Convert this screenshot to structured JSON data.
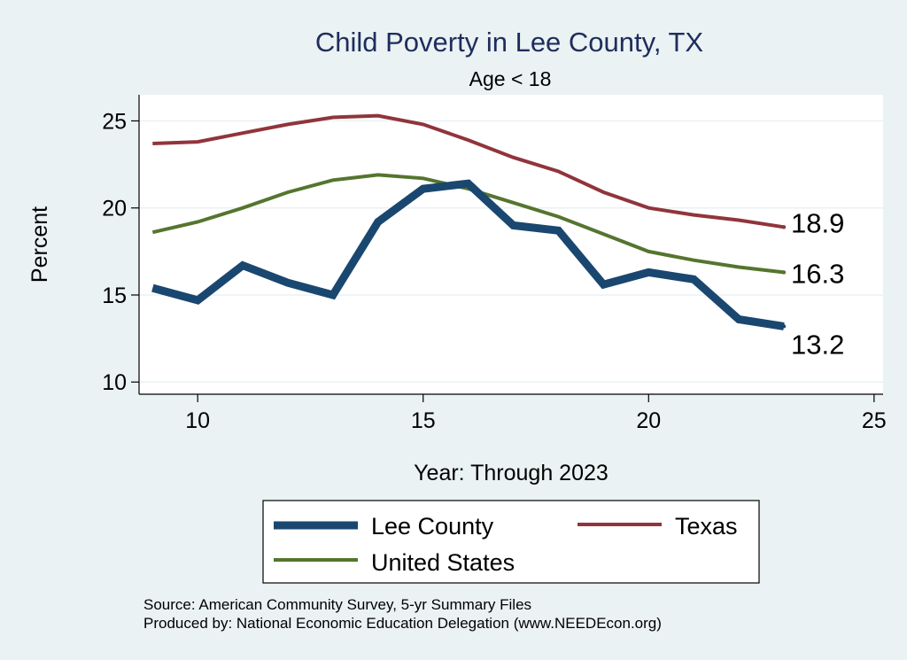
{
  "chart_data": {
    "type": "line",
    "title": "Child Poverty in Lee County, TX",
    "subtitle": "Age < 18",
    "xlabel": "Year: Through 2023",
    "ylabel": "Percent",
    "xlim": [
      8.7,
      25.2
    ],
    "ylim": [
      9.3,
      26.5
    ],
    "xticks": [
      "10",
      "15",
      "20",
      "25"
    ],
    "yticks": [
      "10",
      "15",
      "20",
      "25"
    ],
    "grid": true,
    "legend_position": "bottom",
    "x": [
      9,
      10,
      11,
      12,
      13,
      14,
      15,
      16,
      17,
      18,
      19,
      20,
      21,
      22,
      23
    ],
    "series": [
      {
        "name": "Lee County",
        "color": "#1a476f",
        "values": [
          15.4,
          14.7,
          16.7,
          15.7,
          15.0,
          19.2,
          21.1,
          21.4,
          19.0,
          18.7,
          15.6,
          16.3,
          15.9,
          13.6,
          13.2
        ],
        "end_label": "13.2"
      },
      {
        "name": "Texas",
        "color": "#90353b",
        "values": [
          23.7,
          23.8,
          24.3,
          24.8,
          25.2,
          25.3,
          24.8,
          23.9,
          22.9,
          22.1,
          20.9,
          20.0,
          19.6,
          19.3,
          18.9
        ],
        "end_label": "18.9"
      },
      {
        "name": "United States",
        "color": "#55752f",
        "values": [
          18.6,
          19.2,
          20.0,
          20.9,
          21.6,
          21.9,
          21.7,
          21.1,
          20.3,
          19.5,
          18.5,
          17.5,
          17.0,
          16.6,
          16.3
        ],
        "end_label": "16.3"
      }
    ],
    "legend": [
      {
        "label": "Lee County",
        "color": "#1a476f"
      },
      {
        "label": "Texas",
        "color": "#90353b"
      },
      {
        "label": "United States",
        "color": "#55752f"
      }
    ],
    "notes": [
      "Source: American Community Survey, 5-yr Summary Files",
      "Produced by: National Economic Education Delegation (www.NEEDEcon.org)"
    ]
  }
}
